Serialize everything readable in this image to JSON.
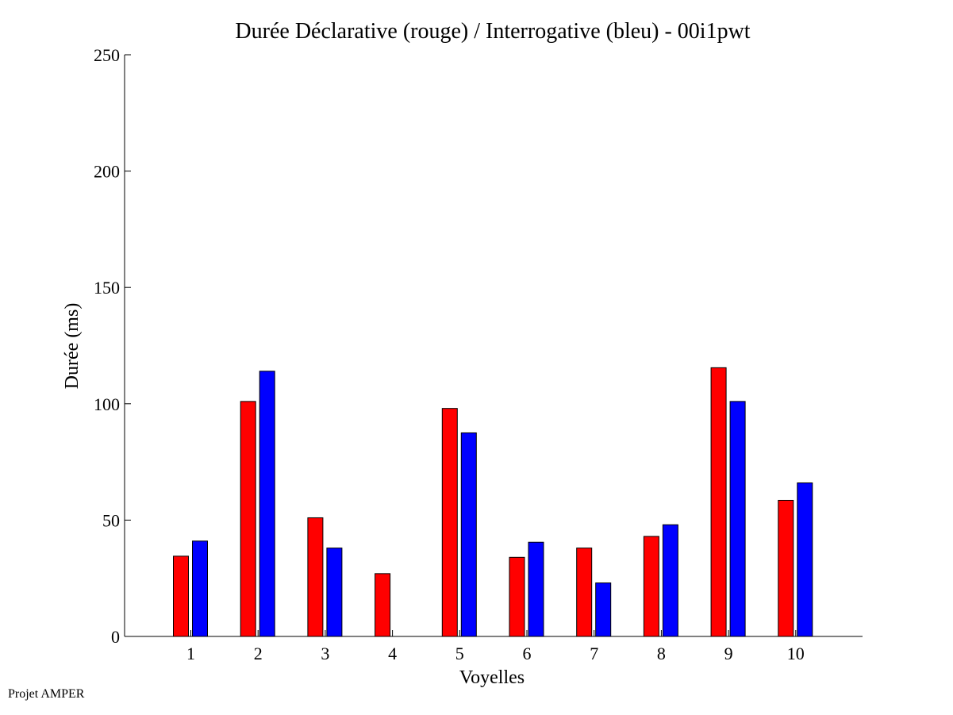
{
  "chart_data": {
    "type": "bar",
    "title": "Durée Déclarative (rouge) / Interrogative (bleu) - 00i1pwt",
    "xlabel": "Voyelles",
    "ylabel": "Durée (ms)",
    "ylim": [
      0,
      250
    ],
    "yticks": [
      0,
      50,
      100,
      150,
      200,
      250
    ],
    "categories": [
      "1",
      "2",
      "3",
      "4",
      "5",
      "6",
      "7",
      "8",
      "9",
      "10"
    ],
    "series": [
      {
        "color": "#ff0000",
        "values": [
          34.5,
          101,
          51,
          27,
          98,
          34,
          38,
          43,
          115.5,
          58.5
        ]
      },
      {
        "color": "#0000ff",
        "values": [
          41,
          114,
          38,
          null,
          87.5,
          40.5,
          23,
          48,
          101,
          66
        ]
      }
    ],
    "grid": false,
    "legend": "none"
  },
  "footer": {
    "credit": "Projet AMPER"
  }
}
